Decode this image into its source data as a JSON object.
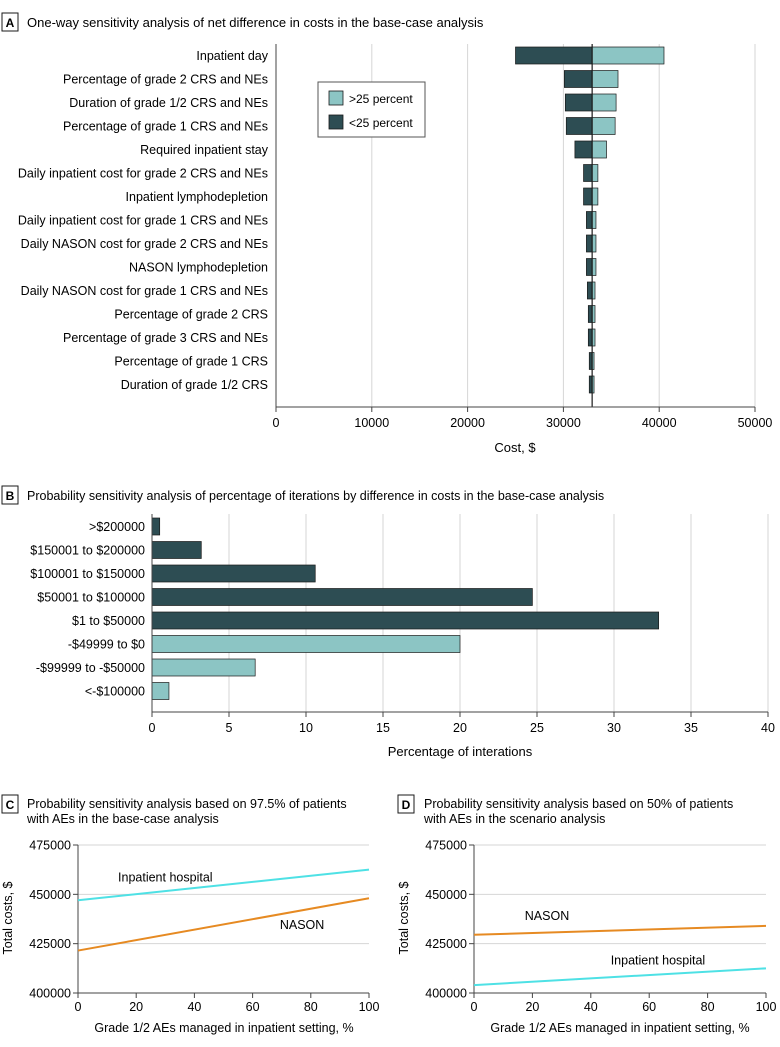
{
  "colors": {
    "dark": "#2d4d53",
    "light": "#8cc5c4",
    "cyan": "#4ee1e5",
    "orange": "#e68a22",
    "grid": "#d6d6d6",
    "axis": "#444444"
  },
  "chart_data": [
    {
      "id": "A",
      "panel_letter": "A",
      "type": "tornado",
      "title": "One-way sensitivity analysis of net difference in costs in the base-case analysis",
      "xlabel": "Cost, $",
      "xlim": [
        0,
        50000
      ],
      "xticks": [
        0,
        10000,
        20000,
        30000,
        40000,
        50000
      ],
      "xtick_labels": [
        "0",
        "10000",
        "20000",
        "30000",
        "40000",
        "50000"
      ],
      "base": 33000,
      "legend": {
        "high": ">25 percent",
        "low": "<25 percent"
      },
      "categories": [
        "Inpatient day",
        "Percentage of grade 2 CRS and NEs",
        "Duration of grade 1/2 CRS and NEs",
        "Percentage of grade 1 CRS and NEs",
        "Required inpatient stay",
        "Daily inpatient cost for grade 2 CRS and NEs",
        "Inpatient lymphodepletion",
        "Daily inpatient cost for grade 1 CRS and NEs",
        "Daily NASON cost for grade 2 CRS and NEs",
        "NASON lymphodepletion",
        "Daily NASON cost for grade 1 CRS and NEs",
        "Percentage of grade 2 CRS",
        "Percentage of grade 3 CRS and NEs",
        "Percentage of grade 1 CRS",
        "Duration of grade 1/2 CRS"
      ],
      "low_values": [
        25000,
        30100,
        30200,
        30300,
        31200,
        32100,
        32100,
        32400,
        32400,
        32400,
        32500,
        32600,
        32600,
        32700,
        32700
      ],
      "high_values": [
        40500,
        35700,
        35500,
        35400,
        34500,
        33600,
        33600,
        33400,
        33400,
        33400,
        33300,
        33300,
        33300,
        33200,
        33200
      ]
    },
    {
      "id": "B",
      "panel_letter": "B",
      "type": "bar",
      "orientation": "horizontal",
      "title": "Probability sensitivity analysis of percentage of iterations by difference in costs in the base-case analysis",
      "xlabel": "Percentage of interations",
      "xlim": [
        0,
        40
      ],
      "xticks": [
        0,
        5,
        10,
        15,
        20,
        25,
        30,
        35,
        40
      ],
      "xtick_labels": [
        "0",
        "5",
        "10",
        "15",
        "20",
        "25",
        "30",
        "35",
        "40"
      ],
      "categories": [
        ">$200000",
        "$150001 to $200000",
        "$100001 to $150000",
        "$50001 to $100000",
        "$1 to $50000",
        "-$49999 to $0",
        "-$99999 to -$50000",
        "<-$100000"
      ],
      "values": [
        0.5,
        3.2,
        10.6,
        24.7,
        32.9,
        20.0,
        6.7,
        1.1
      ],
      "color_groups": [
        "dark",
        "dark",
        "dark",
        "dark",
        "dark",
        "light",
        "light",
        "light"
      ]
    },
    {
      "id": "C",
      "panel_letter": "C",
      "type": "line",
      "title_lines": [
        "Probability sensitivity analysis based on 97.5% of patients",
        "with AEs in the base-case analysis"
      ],
      "xlabel": "Grade 1/2 AEs managed in inpatient setting, %",
      "ylabel": "Total costs, $",
      "xlim": [
        0,
        100
      ],
      "ylim": [
        400000,
        475000
      ],
      "xticks": [
        0,
        20,
        40,
        60,
        80,
        100
      ],
      "xtick_labels": [
        "0",
        "20",
        "40",
        "60",
        "80",
        "100"
      ],
      "yticks": [
        400000,
        425000,
        450000,
        475000
      ],
      "ytick_labels": [
        "400000",
        "425000",
        "450000",
        "475000"
      ],
      "series": [
        {
          "name": "Inpatient hospital",
          "color": "cyan",
          "x": [
            0,
            100
          ],
          "y": [
            447000,
            462500
          ],
          "label_pos": [
            30,
            456500
          ]
        },
        {
          "name": "NASON",
          "color": "orange",
          "x": [
            0,
            100
          ],
          "y": [
            421500,
            448000
          ],
          "label_pos": [
            77,
            432500
          ]
        }
      ]
    },
    {
      "id": "D",
      "panel_letter": "D",
      "type": "line",
      "title_lines": [
        "Probability sensitivity analysis based on 50% of patients",
        "with AEs in the scenario analysis"
      ],
      "xlabel": "Grade 1/2 AEs managed in inpatient setting, %",
      "ylabel": "Total costs, $",
      "xlim": [
        0,
        100
      ],
      "ylim": [
        400000,
        475000
      ],
      "xticks": [
        0,
        20,
        40,
        60,
        80,
        100
      ],
      "xtick_labels": [
        "0",
        "20",
        "40",
        "60",
        "80",
        "100"
      ],
      "yticks": [
        400000,
        425000,
        450000,
        475000
      ],
      "ytick_labels": [
        "400000",
        "425000",
        "450000",
        "475000"
      ],
      "series": [
        {
          "name": "NASON",
          "color": "orange",
          "x": [
            0,
            100
          ],
          "y": [
            429500,
            434000
          ],
          "label_pos": [
            25,
            437000
          ]
        },
        {
          "name": "Inpatient hospital",
          "color": "cyan",
          "x": [
            0,
            100
          ],
          "y": [
            404000,
            412500
          ],
          "label_pos": [
            63,
            414500
          ]
        }
      ]
    }
  ]
}
